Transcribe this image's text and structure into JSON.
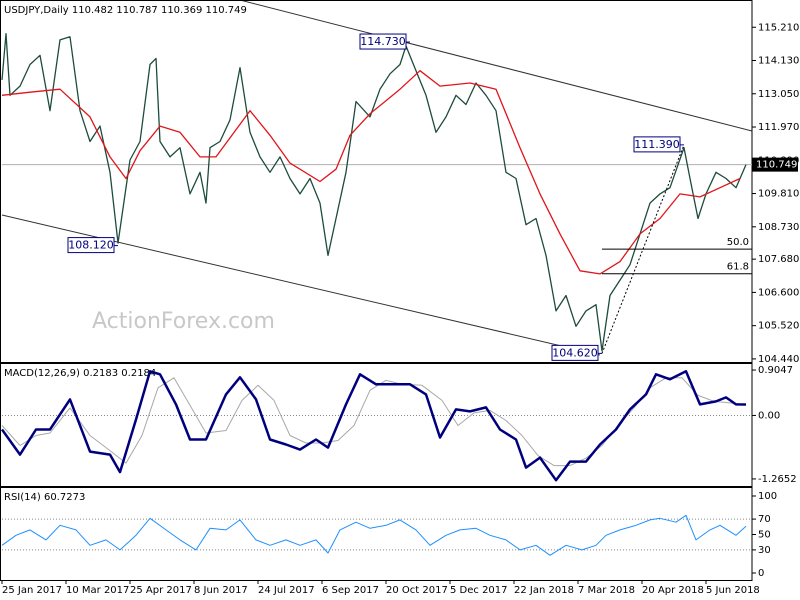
{
  "chart_data": [
    {
      "type": "line",
      "title": "USDJPY,Daily  110.482 110.787 110.369 110.749",
      "watermark": "ActionForex.com",
      "xlim": [
        0,
        375
      ],
      "ylim": [
        104.34,
        116.03
      ],
      "yticks": [
        {
          "value": 104.44,
          "label": "104.440"
        },
        {
          "value": 105.52,
          "label": "105.520"
        },
        {
          "value": 106.6,
          "label": "106.600"
        },
        {
          "value": 107.68,
          "label": "107.680"
        },
        {
          "value": 108.73,
          "label": "108.730"
        },
        {
          "value": 109.81,
          "label": "109.810"
        },
        {
          "value": 110.89,
          "label": "110.890"
        },
        {
          "value": 111.97,
          "label": "111.970"
        },
        {
          "value": 113.05,
          "label": "113.050"
        },
        {
          "value": 114.13,
          "label": "114.130"
        },
        {
          "value": 115.21,
          "label": "115.210"
        }
      ],
      "series": [
        {
          "color": "#1d4c3b",
          "width": 1.3,
          "x": [
            0,
            2,
            4,
            9,
            14,
            19,
            24,
            29,
            34,
            39,
            44,
            49,
            54,
            58,
            64,
            69,
            74,
            77,
            79,
            84,
            89,
            94,
            99,
            102,
            104,
            109,
            114,
            119,
            124,
            129,
            134,
            139,
            144,
            149,
            154,
            159,
            163,
            167,
            172,
            177,
            184,
            189,
            194,
            199,
            202,
            207,
            212,
            217,
            222,
            227,
            232,
            237,
            242,
            247,
            252,
            257,
            262,
            267,
            272,
            277,
            282,
            287,
            292,
            297,
            300,
            304,
            309,
            314,
            319,
            324,
            329,
            334,
            341,
            344,
            348,
            352,
            357,
            362,
            367,
            372
          ],
          "values": [
            113.5,
            115.0,
            113.0,
            113.3,
            114.0,
            114.3,
            112.5,
            114.8,
            114.9,
            112.5,
            111.5,
            112.0,
            110.5,
            108.2,
            110.9,
            111.5,
            114.0,
            114.2,
            111.5,
            111.0,
            111.3,
            109.8,
            110.5,
            109.5,
            111.3,
            111.5,
            112.2,
            113.9,
            111.8,
            111.0,
            110.5,
            111.0,
            110.3,
            109.8,
            110.3,
            109.5,
            107.8,
            109.0,
            110.5,
            112.8,
            112.3,
            113.2,
            113.7,
            114.0,
            114.6,
            113.8,
            113.0,
            111.8,
            112.3,
            113.0,
            112.7,
            113.4,
            113.0,
            112.5,
            110.5,
            110.3,
            108.8,
            109.0,
            107.8,
            106.0,
            106.5,
            105.5,
            106.0,
            106.2,
            104.7,
            106.5,
            107.0,
            107.5,
            108.5,
            109.5,
            109.8,
            110.0,
            111.3,
            110.3,
            109.0,
            109.8,
            110.5,
            110.3,
            110.0,
            110.749
          ]
        },
        {
          "color": "#e0151b",
          "width": 1.3,
          "x": [
            0,
            14,
            29,
            44,
            54,
            62,
            69,
            79,
            89,
            99,
            107,
            124,
            134,
            144,
            159,
            167,
            174,
            184,
            199,
            209,
            219,
            234,
            247,
            259,
            269,
            279,
            289,
            299,
            309,
            319,
            329,
            339,
            349,
            359,
            369
          ],
          "values": [
            113.0,
            113.1,
            113.2,
            112.3,
            111.0,
            110.3,
            111.2,
            112.0,
            111.8,
            111.0,
            111.0,
            112.5,
            111.7,
            110.8,
            110.2,
            110.6,
            111.7,
            112.4,
            113.2,
            113.8,
            113.3,
            113.4,
            113.2,
            111.3,
            109.8,
            108.5,
            107.3,
            107.2,
            107.6,
            108.5,
            109.0,
            109.8,
            109.7,
            110.0,
            110.3
          ]
        }
      ],
      "last_price": 110.749,
      "annotations": [
        {
          "x": 204,
          "value": 114.73,
          "label": "114.730"
        },
        {
          "x": 58,
          "value": 108.12,
          "label": "108.120"
        },
        {
          "x": 341,
          "value": 111.39,
          "label": "111.390"
        },
        {
          "x": 300,
          "value": 104.62,
          "label": "104.620"
        }
      ],
      "fib_levels": [
        {
          "value": 50,
          "label": "50.0"
        },
        {
          "value": 61.8,
          "label": "61.8"
        }
      ]
    },
    {
      "type": "line",
      "title": "MACD(12,26,9) 0.2183 0.2184",
      "xlim": [
        0,
        375
      ],
      "ylim": [
        -1.406,
        1.005
      ],
      "yticks": [
        -1.2652,
        {
          "value": 0,
          "label": "0.00"
        },
        0.9047
      ],
      "levels": [
        0
      ],
      "series": [
        {
          "color": "#a8a8a8",
          "width": 1,
          "x": [
            0,
            9,
            17,
            24,
            34,
            44,
            54,
            62,
            70,
            78,
            86,
            94,
            102,
            112,
            120,
            128,
            136,
            144,
            152,
            160,
            168,
            176,
            184,
            192,
            200,
            210,
            220,
            228,
            236,
            244,
            252,
            260,
            268,
            276,
            284,
            292,
            300,
            308,
            316,
            324,
            332,
            340,
            348,
            356,
            364,
            372
          ],
          "values": [
            -0.2,
            -0.6,
            -0.4,
            -0.35,
            0.15,
            -0.4,
            -0.7,
            -0.95,
            -0.4,
            0.55,
            0.75,
            0.2,
            -0.35,
            -0.3,
            0.3,
            0.6,
            0.3,
            -0.4,
            -0.55,
            -0.55,
            -0.5,
            -0.2,
            0.5,
            0.7,
            0.62,
            0.6,
            0.3,
            -0.2,
            0.05,
            0.1,
            -0.1,
            -0.4,
            -0.8,
            -1.0,
            -1.0,
            -0.85,
            -0.6,
            -0.2,
            0.15,
            0.55,
            0.75,
            0.75,
            0.4,
            0.28,
            0.25,
            0.2184
          ]
        },
        {
          "color": "#00007f",
          "width": 2.5,
          "x": [
            0,
            9,
            17,
            24,
            34,
            44,
            54,
            59,
            67,
            74,
            79,
            87,
            94,
            102,
            112,
            119,
            127,
            134,
            142,
            149,
            157,
            163,
            172,
            179,
            187,
            194,
            204,
            212,
            219,
            227,
            234,
            242,
            249,
            257,
            262,
            269,
            277,
            284,
            292,
            299,
            307,
            314,
            322,
            327,
            334,
            342,
            349,
            357,
            362,
            367,
            372
          ],
          "values": [
            -0.28,
            -0.78,
            -0.28,
            -0.28,
            0.32,
            -0.72,
            -0.78,
            -1.13,
            -0.08,
            0.88,
            0.82,
            0.22,
            -0.48,
            -0.48,
            0.42,
            0.76,
            0.32,
            -0.48,
            -0.58,
            -0.68,
            -0.48,
            -0.64,
            0.22,
            0.82,
            0.62,
            0.62,
            0.62,
            0.42,
            -0.44,
            0.12,
            0.08,
            0.16,
            -0.28,
            -0.48,
            -1.04,
            -0.84,
            -1.29,
            -0.92,
            -0.92,
            -0.58,
            -0.28,
            0.12,
            0.42,
            0.82,
            0.72,
            0.88,
            0.22,
            0.28,
            0.36,
            0.22,
            0.2183
          ]
        }
      ]
    },
    {
      "type": "line",
      "title": "RSI(14) 60.7273",
      "xlim": [
        0,
        375
      ],
      "ylim": [
        -9.1,
        109.1
      ],
      "yticks": [
        0,
        30,
        50,
        70,
        100
      ],
      "levels": [
        30,
        70
      ],
      "xticks": [
        {
          "value": 0,
          "label": "25 Jan 2017"
        },
        {
          "value": 32,
          "label": "10 Mar 2017"
        },
        {
          "value": 64,
          "label": "25 Apr 2017"
        },
        {
          "value": 96,
          "label": "8 Jun 2017"
        },
        {
          "value": 128,
          "label": "24 Jul 2017"
        },
        {
          "value": 160,
          "label": "6 Sep 2017"
        },
        {
          "value": 192,
          "label": "20 Oct 2017"
        },
        {
          "value": 224,
          "label": "5 Dec 2017"
        },
        {
          "value": 256,
          "label": "22 Jan 2018"
        },
        {
          "value": 288,
          "label": "7 Mar 2018"
        },
        {
          "value": 320,
          "label": "20 Apr 2018"
        },
        {
          "value": 352,
          "label": "5 Jun 2018"
        }
      ],
      "series": [
        {
          "color": "#1e90ff",
          "width": 1,
          "x": [
            0,
            7,
            14,
            22,
            29,
            37,
            44,
            52,
            59,
            67,
            74,
            82,
            89,
            97,
            104,
            112,
            119,
            127,
            134,
            142,
            149,
            157,
            163,
            169,
            177,
            184,
            192,
            199,
            207,
            214,
            222,
            229,
            237,
            244,
            252,
            259,
            267,
            274,
            282,
            290,
            297,
            302,
            309,
            317,
            324,
            329,
            337,
            342,
            347,
            354,
            359,
            367,
            372
          ],
          "values": [
            36,
            49,
            56,
            43,
            62,
            56,
            36,
            43,
            30,
            49,
            71,
            56,
            43,
            30,
            58,
            56,
            69,
            43,
            36,
            43,
            36,
            43,
            26,
            56,
            66,
            58,
            62,
            69,
            56,
            36,
            49,
            56,
            58,
            49,
            43,
            30,
            36,
            23,
            36,
            30,
            36,
            49,
            56,
            62,
            69,
            71,
            66,
            75,
            43,
            56,
            62,
            49,
            60.7273
          ]
        }
      ]
    }
  ]
}
